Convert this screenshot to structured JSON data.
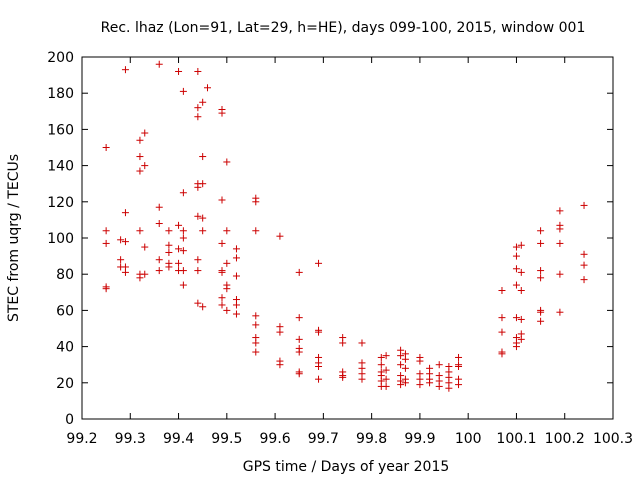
{
  "chart_data": {
    "type": "scatter",
    "title": "Rec. lhaz (Lon=91, Lat=29, h=HE), days 099-100, 2015, window 001",
    "xlabel": "GPS time / Days of year 2015",
    "ylabel": "STEC from uqrg / TECUs",
    "xlim": [
      99.2,
      100.3
    ],
    "ylim": [
      0,
      200
    ],
    "xticks": [
      "99.2",
      "99.3",
      "99.4",
      "99.5",
      "99.6",
      "99.7",
      "99.8",
      "99.9",
      "100",
      "100.1",
      "100.2",
      "100.3"
    ],
    "yticks": [
      "0",
      "20",
      "40",
      "60",
      "80",
      "100",
      "120",
      "140",
      "160",
      "180",
      "200"
    ],
    "grid": false,
    "marker": "plus",
    "color": "#cc0000",
    "points": [
      [
        99.25,
        150
      ],
      [
        99.25,
        104
      ],
      [
        99.25,
        97
      ],
      [
        99.25,
        73
      ],
      [
        99.25,
        72
      ],
      [
        99.28,
        99
      ],
      [
        99.28,
        88
      ],
      [
        99.28,
        84
      ],
      [
        99.29,
        193
      ],
      [
        99.29,
        114
      ],
      [
        99.29,
        98
      ],
      [
        99.29,
        84
      ],
      [
        99.29,
        81
      ],
      [
        99.32,
        154
      ],
      [
        99.32,
        145
      ],
      [
        99.32,
        137
      ],
      [
        99.32,
        104
      ],
      [
        99.32,
        80
      ],
      [
        99.32,
        78
      ],
      [
        99.33,
        158
      ],
      [
        99.33,
        140
      ],
      [
        99.33,
        95
      ],
      [
        99.33,
        80
      ],
      [
        99.36,
        196
      ],
      [
        99.36,
        117
      ],
      [
        99.36,
        108
      ],
      [
        99.36,
        88
      ],
      [
        99.36,
        82
      ],
      [
        99.38,
        104
      ],
      [
        99.38,
        96
      ],
      [
        99.38,
        92
      ],
      [
        99.38,
        86
      ],
      [
        99.38,
        84
      ],
      [
        99.4,
        192
      ],
      [
        99.4,
        107
      ],
      [
        99.4,
        94
      ],
      [
        99.4,
        86
      ],
      [
        99.4,
        82
      ],
      [
        99.41,
        181
      ],
      [
        99.41,
        125
      ],
      [
        99.41,
        104
      ],
      [
        99.41,
        100
      ],
      [
        99.41,
        93
      ],
      [
        99.41,
        82
      ],
      [
        99.41,
        74
      ],
      [
        99.44,
        192
      ],
      [
        99.44,
        172
      ],
      [
        99.44,
        167
      ],
      [
        99.44,
        130
      ],
      [
        99.44,
        128
      ],
      [
        99.44,
        112
      ],
      [
        99.44,
        88
      ],
      [
        99.44,
        82
      ],
      [
        99.44,
        64
      ],
      [
        99.45,
        175
      ],
      [
        99.45,
        145
      ],
      [
        99.45,
        130
      ],
      [
        99.45,
        111
      ],
      [
        99.45,
        104
      ],
      [
        99.45,
        62
      ],
      [
        99.46,
        183
      ],
      [
        99.49,
        171
      ],
      [
        99.49,
        169
      ],
      [
        99.49,
        121
      ],
      [
        99.49,
        97
      ],
      [
        99.49,
        82
      ],
      [
        99.49,
        81
      ],
      [
        99.49,
        67
      ],
      [
        99.49,
        63
      ],
      [
        99.5,
        142
      ],
      [
        99.5,
        104
      ],
      [
        99.5,
        86
      ],
      [
        99.5,
        74
      ],
      [
        99.5,
        72
      ],
      [
        99.5,
        60
      ],
      [
        99.52,
        94
      ],
      [
        99.52,
        89
      ],
      [
        99.52,
        79
      ],
      [
        99.52,
        66
      ],
      [
        99.52,
        63
      ],
      [
        99.52,
        58
      ],
      [
        99.56,
        122
      ],
      [
        99.56,
        120
      ],
      [
        99.56,
        104
      ],
      [
        99.56,
        57
      ],
      [
        99.56,
        52
      ],
      [
        99.56,
        45
      ],
      [
        99.56,
        42
      ],
      [
        99.56,
        37
      ],
      [
        99.61,
        101
      ],
      [
        99.61,
        51
      ],
      [
        99.61,
        48
      ],
      [
        99.61,
        32
      ],
      [
        99.61,
        30
      ],
      [
        99.65,
        81
      ],
      [
        99.65,
        56
      ],
      [
        99.65,
        44
      ],
      [
        99.65,
        39
      ],
      [
        99.65,
        37
      ],
      [
        99.65,
        26
      ],
      [
        99.65,
        25
      ],
      [
        99.69,
        86
      ],
      [
        99.69,
        49
      ],
      [
        99.69,
        48
      ],
      [
        99.69,
        34
      ],
      [
        99.69,
        31
      ],
      [
        99.69,
        29
      ],
      [
        99.69,
        22
      ],
      [
        99.74,
        45
      ],
      [
        99.74,
        42
      ],
      [
        99.74,
        26
      ],
      [
        99.74,
        24
      ],
      [
        99.74,
        23
      ],
      [
        99.78,
        42
      ],
      [
        99.78,
        31
      ],
      [
        99.78,
        28
      ],
      [
        99.78,
        25
      ],
      [
        99.78,
        22
      ],
      [
        99.82,
        34
      ],
      [
        99.82,
        30
      ],
      [
        99.82,
        26
      ],
      [
        99.82,
        24
      ],
      [
        99.82,
        21
      ],
      [
        99.82,
        18
      ],
      [
        99.83,
        35
      ],
      [
        99.83,
        27
      ],
      [
        99.83,
        22
      ],
      [
        99.83,
        18
      ],
      [
        99.86,
        38
      ],
      [
        99.86,
        35
      ],
      [
        99.86,
        30
      ],
      [
        99.86,
        24
      ],
      [
        99.86,
        21
      ],
      [
        99.86,
        19
      ],
      [
        99.87,
        36
      ],
      [
        99.87,
        33
      ],
      [
        99.87,
        28
      ],
      [
        99.87,
        22
      ],
      [
        99.87,
        20
      ],
      [
        99.9,
        34
      ],
      [
        99.9,
        32
      ],
      [
        99.9,
        25
      ],
      [
        99.9,
        22
      ],
      [
        99.9,
        19
      ],
      [
        99.92,
        28
      ],
      [
        99.92,
        25
      ],
      [
        99.92,
        22
      ],
      [
        99.92,
        20
      ],
      [
        99.94,
        30
      ],
      [
        99.94,
        24
      ],
      [
        99.94,
        21
      ],
      [
        99.94,
        18
      ],
      [
        99.96,
        29
      ],
      [
        99.96,
        26
      ],
      [
        99.96,
        23
      ],
      [
        99.96,
        20
      ],
      [
        99.96,
        17
      ],
      [
        99.98,
        34
      ],
      [
        99.98,
        30
      ],
      [
        99.98,
        29
      ],
      [
        99.98,
        22
      ],
      [
        99.98,
        19
      ],
      [
        100.07,
        71
      ],
      [
        100.07,
        56
      ],
      [
        100.07,
        48
      ],
      [
        100.07,
        37
      ],
      [
        100.07,
        36
      ],
      [
        100.1,
        95
      ],
      [
        100.1,
        90
      ],
      [
        100.1,
        83
      ],
      [
        100.1,
        74
      ],
      [
        100.1,
        56
      ],
      [
        100.1,
        45
      ],
      [
        100.1,
        42
      ],
      [
        100.1,
        40
      ],
      [
        100.11,
        96
      ],
      [
        100.11,
        81
      ],
      [
        100.11,
        71
      ],
      [
        100.11,
        55
      ],
      [
        100.11,
        47
      ],
      [
        100.11,
        44
      ],
      [
        100.15,
        104
      ],
      [
        100.15,
        97
      ],
      [
        100.15,
        82
      ],
      [
        100.15,
        78
      ],
      [
        100.15,
        60
      ],
      [
        100.15,
        59
      ],
      [
        100.15,
        54
      ],
      [
        100.19,
        115
      ],
      [
        100.19,
        107
      ],
      [
        100.19,
        105
      ],
      [
        100.19,
        97
      ],
      [
        100.19,
        80
      ],
      [
        100.19,
        59
      ],
      [
        100.24,
        118
      ],
      [
        100.24,
        91
      ],
      [
        100.24,
        85
      ],
      [
        100.24,
        77
      ]
    ]
  }
}
